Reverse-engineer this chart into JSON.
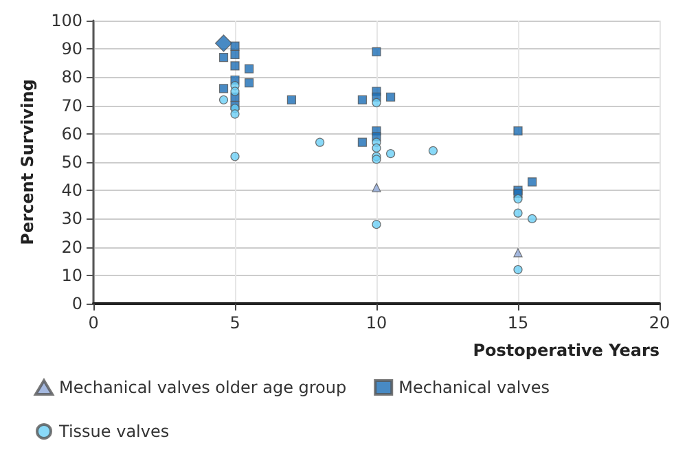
{
  "chart_data": {
    "type": "scatter",
    "xlabel": "Postoperative Years",
    "ylabel": "Percent Surviving",
    "xlim": [
      0,
      20
    ],
    "xticks": [
      0,
      5,
      10,
      15,
      20
    ],
    "ylim": [
      0,
      100
    ],
    "yticks": [
      0,
      10,
      20,
      30,
      40,
      50,
      60,
      70,
      80,
      90,
      100
    ],
    "grid": true,
    "legend": "bottom",
    "series": [
      {
        "color": "#1a6db5",
        "marker": "diamond",
        "x": [
          4.6
        ],
        "values": [
          92
        ]
      },
      {
        "name": "Mechanical valves older age group",
        "color": "#8fa8d8",
        "marker": "triangle",
        "x": [
          10,
          15
        ],
        "values": [
          41,
          18
        ]
      },
      {
        "name": "Mechanical valves",
        "color": "#1a6db5",
        "marker": "square",
        "x": [
          4.6,
          5,
          5,
          5,
          5.5,
          4.6,
          5,
          5.5,
          5,
          5,
          7,
          9.5,
          10,
          10,
          10,
          10.5,
          9.5,
          10,
          10,
          15,
          15,
          15.5,
          15
        ],
        "values": [
          87,
          91,
          88,
          84,
          83,
          76,
          79,
          78,
          73,
          70,
          72,
          72,
          89,
          75,
          73,
          73,
          57,
          61,
          59,
          61,
          40,
          43,
          39
        ]
      },
      {
        "name": "Tissue valves",
        "color": "#6ccff6",
        "marker": "circle",
        "x": [
          4.6,
          5,
          5,
          5,
          5,
          5,
          8,
          10,
          10,
          10,
          10,
          10,
          10.5,
          12,
          10,
          15,
          15,
          15.5,
          15
        ],
        "values": [
          72,
          77,
          75,
          69,
          67,
          52,
          57,
          71,
          57,
          55,
          52,
          51,
          53,
          54,
          28,
          37,
          32,
          30,
          12
        ]
      }
    ]
  }
}
